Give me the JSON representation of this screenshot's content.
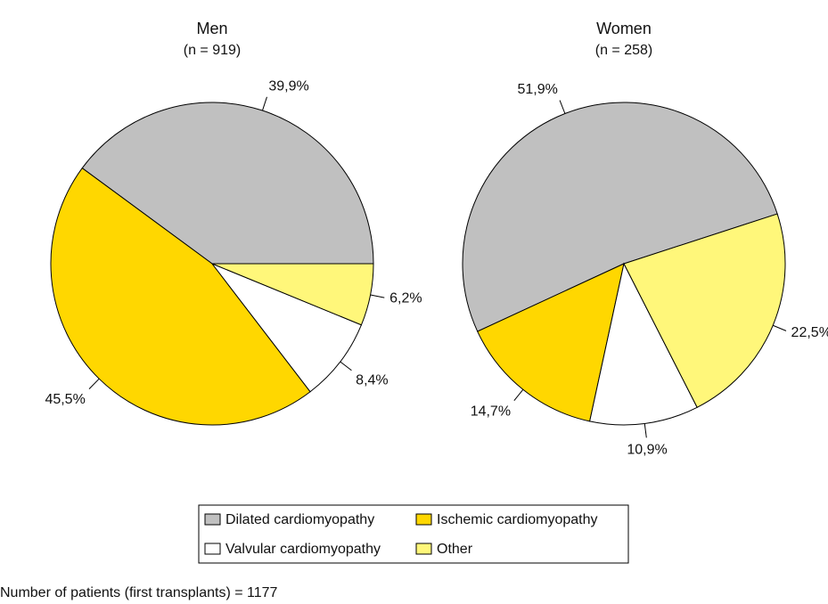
{
  "chart_data": [
    {
      "type": "pie",
      "title": "Men",
      "subtitle": "(n = 919)",
      "startangle": 0,
      "categories": [
        "Dilated cardiomyopathy",
        "Ischemic cardiomyopathy",
        "Valvular cardiomyopathy",
        "Other"
      ],
      "values": [
        39.9,
        45.5,
        8.4,
        6.2
      ],
      "value_labels": [
        "39,9%",
        "45,5%",
        "8,4%",
        "6,2%"
      ],
      "colors": [
        "#c0c0c0",
        "#ffd700",
        "#ffffff",
        "#fff77a"
      ]
    },
    {
      "type": "pie",
      "title": "Women",
      "subtitle": "(n = 258)",
      "startangle": 18,
      "categories": [
        "Dilated cardiomyopathy",
        "Ischemic cardiomyopathy",
        "Valvular cardiomyopathy",
        "Other"
      ],
      "values": [
        51.9,
        14.7,
        10.9,
        22.5
      ],
      "value_labels": [
        "51,9%",
        "14,7%",
        "10,9%",
        "22,5%"
      ],
      "colors": [
        "#c0c0c0",
        "#ffd700",
        "#ffffff",
        "#fff77a"
      ]
    }
  ],
  "footnote": "Number of patients (first transplants) = 1177"
}
